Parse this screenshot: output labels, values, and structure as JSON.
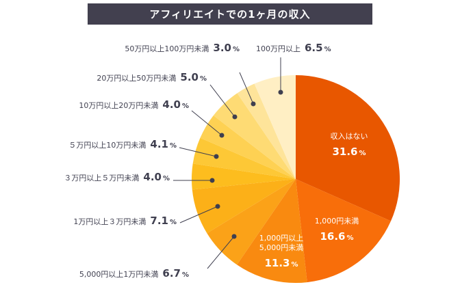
{
  "chart_data": {
    "type": "pie",
    "title": "アフィリエイトでの1ヶ月の収入",
    "slices": [
      {
        "label": "収入はない",
        "value": 31.6,
        "color": "#e85700"
      },
      {
        "label": "1,000円未満",
        "value": 16.6,
        "color": "#f86e0a"
      },
      {
        "label": "1,000円以上 5,000円未満",
        "label_lines": [
          "1,000円以上",
          "5,000円未満"
        ],
        "value": 11.3,
        "color": "#f98a10"
      },
      {
        "label": "5,000円以上1万円未満",
        "value": 6.7,
        "color": "#fba218"
      },
      {
        "label": "1万円以上３万円未満",
        "value": 7.1,
        "color": "#fcb018"
      },
      {
        "label": "３万円以上５万円未満",
        "value": 4.0,
        "color": "#fdbd1e"
      },
      {
        "label": "５万円以上10万円未満",
        "value": 4.1,
        "color": "#fdc836"
      },
      {
        "label": "10万円以上20万円未満",
        "value": 4.0,
        "color": "#fed153"
      },
      {
        "label": "20万円以上50万円未満",
        "value": 5.0,
        "color": "#fedb74"
      },
      {
        "label": "50万円以上100万円未満",
        "value": 3.0,
        "color": "#fee49a"
      },
      {
        "label": "100万円以上",
        "value": 6.5,
        "color": "#ffefc4"
      }
    ],
    "value_suffix": "%"
  }
}
